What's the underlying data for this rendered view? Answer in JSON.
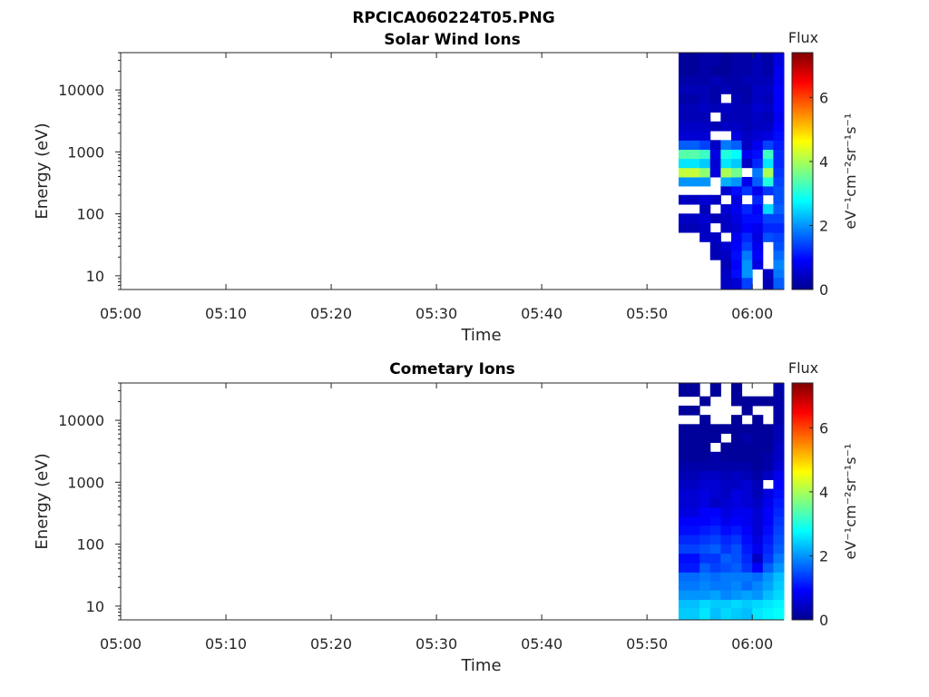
{
  "figure_title": "RPCICA060224T05.PNG",
  "chart_data": [
    {
      "type": "heatmap",
      "title": "Solar Wind Ions",
      "xlabel": "Time",
      "ylabel": "Energy (eV)",
      "y_scale": "log",
      "ylim": [
        6,
        40000
      ],
      "xlim": [
        "05:00",
        "06:03"
      ],
      "x_ticks": [
        "05:00",
        "05:10",
        "05:20",
        "05:30",
        "05:40",
        "05:50",
        "06:00"
      ],
      "y_ticks": [
        "10",
        "100",
        "1000",
        "10000"
      ],
      "colorbar": {
        "label": "Flux",
        "unit": "eV⁻¹cm⁻²sr⁻¹s⁻¹",
        "range": [
          0,
          7.4
        ],
        "ticks": [
          "0",
          "2",
          "4",
          "6"
        ],
        "colormap": "jet"
      },
      "time_bins": [
        "05:53",
        "05:55",
        "05:56",
        "05:57",
        "05:58",
        "05:59",
        "06:00",
        "06:01",
        "06:02"
      ],
      "energy_bins": [
        8,
        11,
        15,
        22,
        30,
        42,
        60,
        85,
        120,
        170,
        240,
        330,
        470,
        660,
        930,
        1300,
        1850,
        2600,
        3700,
        5200,
        7300,
        10300,
        14500,
        20500,
        29000
      ],
      "flux": [
        [
          null,
          null,
          null,
          0.5,
          0.6,
          1.4,
          null,
          0.4,
          1.6
        ],
        [
          null,
          null,
          null,
          0.5,
          1.0,
          2.0,
          null,
          0.5,
          1.8
        ],
        [
          null,
          null,
          null,
          0.4,
          0.9,
          2.0,
          0.7,
          null,
          1.9
        ],
        [
          null,
          null,
          0.4,
          0.5,
          1.0,
          1.8,
          0.9,
          null,
          1.7
        ],
        [
          null,
          null,
          0.4,
          0.6,
          0.9,
          1.4,
          0.8,
          null,
          1.5
        ],
        [
          null,
          0.5,
          0.5,
          null,
          0.8,
          1.2,
          0.7,
          1.5,
          1.4
        ],
        [
          0.4,
          0.5,
          null,
          0.5,
          0.6,
          0.9,
          0.8,
          1.2,
          1.2
        ],
        [
          0.5,
          0.6,
          0.4,
          0.5,
          0.7,
          1.0,
          1.0,
          1.4,
          1.4
        ],
        [
          null,
          0.4,
          null,
          0.6,
          0.8,
          1.2,
          0.9,
          2.5,
          1.6
        ],
        [
          0.5,
          0.6,
          0.5,
          null,
          0.7,
          null,
          1.2,
          null,
          1.5
        ],
        [
          null,
          null,
          null,
          0.6,
          1.0,
          1.3,
          0.8,
          1.3,
          1.5
        ],
        [
          2.0,
          2.0,
          null,
          2.2,
          2.0,
          0.8,
          1.6,
          3.0,
          1.4
        ],
        [
          4.2,
          3.8,
          0.7,
          4.0,
          3.6,
          null,
          1.8,
          4.0,
          1.3
        ],
        [
          2.6,
          2.4,
          0.6,
          2.6,
          2.4,
          0.5,
          1.2,
          2.6,
          1.2
        ],
        [
          3.4,
          3.2,
          0.7,
          3.0,
          2.8,
          0.8,
          1.0,
          3.2,
          1.2
        ],
        [
          1.6,
          1.4,
          0.5,
          1.8,
          1.6,
          0.5,
          0.8,
          1.4,
          1.1
        ],
        [
          0.6,
          0.6,
          null,
          null,
          0.7,
          0.5,
          0.6,
          0.7,
          1.0
        ],
        [
          0.5,
          0.5,
          0.4,
          0.5,
          0.5,
          0.4,
          0.5,
          0.5,
          0.9
        ],
        [
          0.4,
          0.4,
          null,
          0.4,
          0.4,
          0.4,
          0.5,
          0.4,
          0.8
        ],
        [
          0.4,
          0.5,
          0.4,
          0.5,
          0.4,
          0.4,
          0.6,
          0.5,
          0.9
        ],
        [
          0.3,
          0.4,
          0.3,
          null,
          0.4,
          0.3,
          0.5,
          0.4,
          0.9
        ],
        [
          0.4,
          0.4,
          0.3,
          0.4,
          0.3,
          0.3,
          0.5,
          0.5,
          0.9
        ],
        [
          0.3,
          0.3,
          0.4,
          0.3,
          0.3,
          0.4,
          0.4,
          0.4,
          0.8
        ],
        [
          0.2,
          0.3,
          0.2,
          0.2,
          0.3,
          0.3,
          0.4,
          0.3,
          0.8
        ],
        [
          0.2,
          0.3,
          0.3,
          0.2,
          0.3,
          0.3,
          0.4,
          0.3,
          0.7
        ]
      ]
    },
    {
      "type": "heatmap",
      "title": "Cometary Ions",
      "xlabel": "Time",
      "ylabel": "Energy (eV)",
      "y_scale": "log",
      "ylim": [
        6,
        40000
      ],
      "xlim": [
        "05:00",
        "06:03"
      ],
      "x_ticks": [
        "05:00",
        "05:10",
        "05:20",
        "05:30",
        "05:40",
        "05:50",
        "06:00"
      ],
      "y_ticks": [
        "10",
        "100",
        "1000",
        "10000"
      ],
      "colorbar": {
        "label": "Flux",
        "unit": "eV⁻¹cm⁻²sr⁻¹s⁻¹",
        "range": [
          0,
          7.4
        ],
        "ticks": [
          "0",
          "2",
          "4",
          "6"
        ],
        "colormap": "jet"
      },
      "time_bins": [
        "05:53",
        "05:55",
        "05:56",
        "05:57",
        "05:58",
        "05:59",
        "06:00",
        "06:01",
        "06:02"
      ],
      "energy_bins": [
        8,
        11,
        15,
        22,
        30,
        42,
        60,
        85,
        120,
        170,
        240,
        330,
        470,
        660,
        930,
        1300,
        1850,
        2600,
        3700,
        5200,
        7300,
        10300,
        14500,
        20500,
        29000
      ],
      "flux": [
        [
          2.4,
          2.6,
          2.3,
          2.5,
          2.4,
          2.3,
          2.6,
          2.7,
          2.8
        ],
        [
          2.3,
          2.5,
          2.4,
          2.4,
          2.5,
          2.4,
          2.5,
          2.6,
          2.7
        ],
        [
          2.0,
          2.0,
          2.1,
          1.9,
          2.0,
          2.1,
          2.0,
          2.3,
          2.5
        ],
        [
          1.8,
          1.9,
          1.8,
          1.8,
          1.9,
          1.7,
          1.9,
          2.1,
          2.4
        ],
        [
          1.7,
          1.8,
          1.7,
          1.8,
          1.8,
          1.8,
          1.7,
          2.0,
          2.3
        ],
        [
          1.1,
          1.6,
          1.4,
          1.5,
          1.6,
          1.3,
          0.9,
          1.6,
          2.0
        ],
        [
          1.0,
          1.3,
          1.3,
          1.6,
          1.5,
          1.2,
          0.5,
          1.3,
          1.8
        ],
        [
          1.4,
          1.5,
          1.6,
          1.3,
          1.5,
          1.1,
          0.8,
          1.2,
          1.6
        ],
        [
          1.2,
          1.3,
          1.4,
          1.2,
          1.3,
          1.0,
          0.7,
          1.1,
          1.5
        ],
        [
          1.0,
          1.1,
          1.2,
          1.0,
          1.1,
          0.9,
          0.6,
          1.0,
          1.4
        ],
        [
          0.9,
          0.9,
          1.0,
          0.8,
          0.9,
          0.8,
          0.6,
          0.9,
          1.3
        ],
        [
          0.7,
          0.9,
          0.9,
          0.7,
          0.8,
          0.8,
          0.6,
          0.9,
          1.2
        ],
        [
          0.6,
          0.7,
          0.5,
          0.6,
          0.7,
          0.6,
          0.5,
          0.8,
          1.1
        ],
        [
          0.6,
          0.7,
          0.6,
          0.5,
          0.7,
          0.6,
          0.4,
          0.7,
          1.0
        ],
        [
          0.5,
          0.6,
          0.6,
          0.5,
          0.5,
          0.6,
          0.4,
          null,
          0.9
        ],
        [
          0.4,
          0.5,
          0.5,
          0.4,
          0.5,
          0.4,
          0.3,
          0.5,
          0.8
        ],
        [
          0.3,
          0.3,
          0.3,
          0.3,
          0.3,
          0.3,
          0.2,
          0.3,
          0.6
        ],
        [
          0.2,
          0.2,
          0.3,
          0.2,
          0.2,
          0.2,
          0.2,
          0.3,
          0.5
        ],
        [
          0.2,
          0.2,
          null,
          0.2,
          0.2,
          0.2,
          0.2,
          0.2,
          0.5
        ],
        [
          0.2,
          0.2,
          0.2,
          null,
          0.2,
          0.3,
          0.2,
          0.2,
          0.4
        ],
        [
          0.2,
          0.2,
          0.2,
          0.2,
          0.2,
          0.2,
          0.2,
          0.2,
          0.4
        ],
        [
          null,
          0.2,
          null,
          null,
          0.2,
          null,
          0.2,
          null,
          0.3
        ],
        [
          0.2,
          null,
          null,
          null,
          null,
          0.2,
          null,
          null,
          0.3
        ],
        [
          null,
          0.2,
          null,
          null,
          0.2,
          0.2,
          0.2,
          0.2,
          0.3
        ],
        [
          0.2,
          null,
          0.2,
          null,
          0.2,
          null,
          null,
          null,
          0.3
        ]
      ]
    }
  ]
}
